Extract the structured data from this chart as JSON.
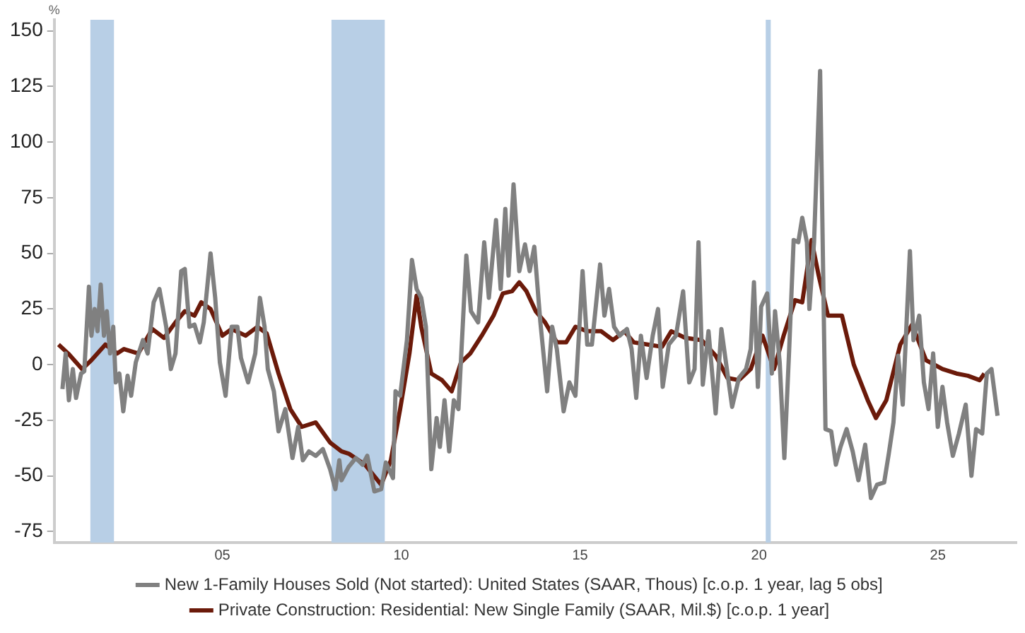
{
  "chart_data": {
    "type": "line",
    "ylabel": "%",
    "xlim": [
      2000.3,
      2027.2
    ],
    "ylim": [
      -80,
      155
    ],
    "xticks": [
      {
        "value": 2005,
        "label": "05"
      },
      {
        "value": 2010,
        "label": "10"
      },
      {
        "value": 2015,
        "label": "15"
      },
      {
        "value": 2020,
        "label": "20"
      },
      {
        "value": 2025,
        "label": "25"
      }
    ],
    "yticks": [
      -75,
      -50,
      -25,
      0,
      25,
      50,
      75,
      100,
      125,
      150
    ],
    "grid": false,
    "legend": "bottom",
    "marker": "none",
    "line_style": "solid",
    "bands": [
      {
        "axis": "x",
        "from": 2001.31,
        "to": 2001.97,
        "color": "#b8cfe6"
      },
      {
        "axis": "x",
        "from": 2008.05,
        "to": 2009.54,
        "color": "#b8cfe6"
      },
      {
        "axis": "x",
        "from": 2020.19,
        "to": 2020.33,
        "color": "#b8cfe6"
      }
    ],
    "series": [
      {
        "name": "New 1-Family Houses Sold (Not started): United States (SAAR, Thous) [c.o.p. 1 year, lag 5 obs]",
        "color": "#808080",
        "x": [
          2000.53,
          2000.62,
          2000.71,
          2000.82,
          2000.91,
          2001.05,
          2001.14,
          2001.27,
          2001.34,
          2001.43,
          2001.51,
          2001.6,
          2001.69,
          2001.77,
          2001.86,
          2001.95,
          2002.02,
          2002.12,
          2002.23,
          2002.35,
          2002.45,
          2002.58,
          2002.78,
          2002.91,
          2003.08,
          2003.24,
          2003.43,
          2003.56,
          2003.69,
          2003.85,
          2003.95,
          2004.08,
          2004.22,
          2004.37,
          2004.48,
          2004.67,
          2004.8,
          2004.93,
          2005.09,
          2005.26,
          2005.42,
          2005.52,
          2005.72,
          2005.92,
          2006.05,
          2006.18,
          2006.27,
          2006.44,
          2006.57,
          2006.76,
          2006.96,
          2007.12,
          2007.25,
          2007.42,
          2007.61,
          2007.81,
          2008.01,
          2008.16,
          2008.27,
          2008.33,
          2008.53,
          2008.73,
          2008.92,
          2009.05,
          2009.25,
          2009.44,
          2009.57,
          2009.77,
          2009.84,
          2009.97,
          2010.16,
          2010.3,
          2010.43,
          2010.56,
          2010.69,
          2010.84,
          2010.99,
          2011.08,
          2011.21,
          2011.34,
          2011.47,
          2011.6,
          2011.82,
          2011.95,
          2012.15,
          2012.32,
          2012.45,
          2012.65,
          2012.78,
          2012.91,
          2013.0,
          2013.14,
          2013.3,
          2013.46,
          2013.59,
          2013.72,
          2013.89,
          2014.08,
          2014.22,
          2014.35,
          2014.54,
          2014.7,
          2014.87,
          2015.07,
          2015.2,
          2015.33,
          2015.56,
          2015.68,
          2015.81,
          2015.95,
          2016.11,
          2016.31,
          2016.44,
          2016.57,
          2016.7,
          2016.86,
          2017.03,
          2017.18,
          2017.31,
          2017.48,
          2017.68,
          2017.88,
          2018.05,
          2018.2,
          2018.31,
          2018.43,
          2018.59,
          2018.79,
          2018.95,
          2019.12,
          2019.25,
          2019.44,
          2019.64,
          2019.77,
          2019.86,
          2019.97,
          2020.06,
          2020.23,
          2020.36,
          2020.45,
          2020.58,
          2020.71,
          2020.84,
          2020.97,
          2021.1,
          2021.21,
          2021.34,
          2021.41,
          2021.54,
          2021.71,
          2021.86,
          2022.02,
          2022.15,
          2022.28,
          2022.45,
          2022.62,
          2022.78,
          2022.97,
          2023.13,
          2023.3,
          2023.5,
          2023.63,
          2023.76,
          2023.89,
          2024.02,
          2024.22,
          2024.32,
          2024.48,
          2024.61,
          2024.74,
          2024.87,
          2025.0,
          2025.13,
          2025.26,
          2025.42,
          2025.59,
          2025.78,
          2025.94,
          2026.07,
          2026.24,
          2026.37,
          2026.5,
          2026.67
        ],
        "values": [
          -11,
          5,
          -16,
          -2,
          -15,
          -4,
          -3,
          35,
          13,
          25,
          15,
          36,
          13,
          24,
          5,
          17,
          -8,
          -4,
          -21,
          -5,
          -14,
          1,
          11,
          5,
          28,
          34,
          17,
          -2,
          5,
          42,
          43,
          17,
          18,
          10,
          19,
          50,
          30,
          1,
          -14,
          17,
          17,
          3,
          -8,
          5,
          30,
          17,
          -2,
          -12,
          -30,
          -20,
          -42,
          -28,
          -43,
          -39,
          -41,
          -38,
          -47,
          -56,
          -43,
          -52,
          -46,
          -42,
          -45,
          -41,
          -57,
          -56,
          -44,
          -51,
          -12,
          -14,
          11,
          47,
          34,
          30,
          17,
          -47,
          -24,
          -37,
          -16,
          -39,
          -16,
          -20,
          49,
          24,
          19,
          55,
          30,
          65,
          34,
          70,
          40,
          81,
          42,
          54,
          42,
          53,
          19,
          -12,
          17,
          7,
          -21,
          -8,
          -14,
          42,
          9,
          9,
          45,
          22,
          34,
          17,
          13,
          16,
          7,
          -15,
          13,
          -6,
          13,
          25,
          -10,
          9,
          13,
          33,
          -8,
          -2,
          55,
          -9,
          15,
          -22,
          16,
          -4,
          -19,
          -6,
          -2,
          7,
          37,
          -10,
          26,
          32,
          -4,
          24,
          1,
          -42,
          5,
          56,
          55,
          66,
          55,
          25,
          55,
          132,
          -29,
          -30,
          -45,
          -37,
          -29,
          -39,
          -52,
          -36,
          -60,
          -54,
          -53,
          -40,
          -26,
          4,
          -18,
          51,
          11,
          22,
          -8,
          -20,
          5,
          -28,
          -10,
          -26,
          -41,
          -31,
          -18,
          -50,
          -29,
          -31,
          -4,
          -2,
          -23
        ]
      },
      {
        "name": "Private Construction: Residential: New Single Family (SAAR, Mil.$) [c.o.p. 1 year]",
        "color": "#6b1a0a",
        "x": [
          2000.42,
          2000.69,
          2001.08,
          2001.34,
          2001.73,
          2002.06,
          2002.25,
          2002.65,
          2003.04,
          2003.37,
          2003.69,
          2003.95,
          2004.22,
          2004.41,
          2004.67,
          2005.0,
          2005.26,
          2005.65,
          2005.98,
          2006.24,
          2006.57,
          2006.9,
          2007.22,
          2007.61,
          2008.01,
          2008.33,
          2008.53,
          2008.99,
          2009.44,
          2009.71,
          2009.97,
          2010.23,
          2010.43,
          2010.56,
          2010.84,
          2011.14,
          2011.41,
          2011.67,
          2011.93,
          2012.25,
          2012.58,
          2012.84,
          2013.1,
          2013.3,
          2013.5,
          2013.76,
          2014.02,
          2014.35,
          2014.61,
          2014.87,
          2015.2,
          2015.59,
          2015.92,
          2016.24,
          2016.5,
          2016.9,
          2017.29,
          2017.55,
          2017.94,
          2018.4,
          2018.79,
          2019.12,
          2019.44,
          2019.77,
          2020.1,
          2020.42,
          2020.69,
          2021.01,
          2021.21,
          2021.47,
          2021.67,
          2021.93,
          2022.32,
          2022.65,
          2023.04,
          2023.27,
          2023.56,
          2023.95,
          2024.28,
          2024.67,
          2025.13,
          2025.52,
          2025.84,
          2026.17,
          2026.3
        ],
        "values": [
          9,
          5,
          -2,
          2,
          9,
          5,
          7,
          5,
          16,
          12,
          19,
          24,
          22,
          28,
          25,
          13,
          16,
          13,
          17,
          14,
          -4,
          -20,
          -28,
          -26,
          -35,
          -39,
          -40,
          -45,
          -54,
          -43,
          -20,
          5,
          31,
          17,
          -4,
          -7,
          -12,
          1,
          5,
          13,
          22,
          32,
          33,
          37,
          33,
          24,
          19,
          10,
          10,
          17,
          15,
          15,
          11,
          15,
          10,
          9,
          8,
          15,
          12,
          11,
          4,
          -6,
          -7,
          -2,
          13,
          -2,
          13,
          29,
          28,
          56,
          40,
          22,
          22,
          0,
          -16,
          -24,
          -16,
          9,
          18,
          2,
          -2,
          -4,
          -5,
          -7,
          -4
        ]
      }
    ]
  }
}
